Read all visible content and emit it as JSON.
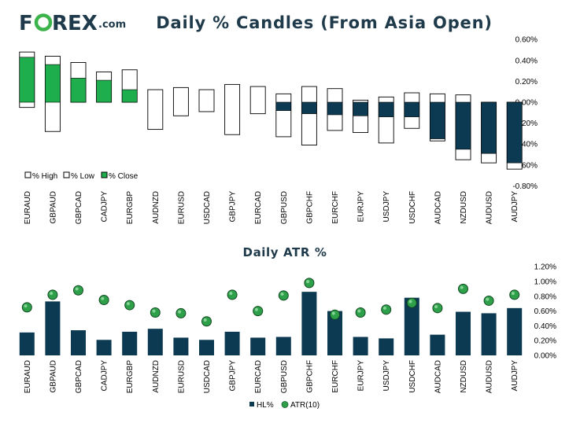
{
  "logo": {
    "f": "F",
    "rest": "REX",
    "domain": ".com",
    "o_color": "#3cb44b"
  },
  "colors": {
    "navy": "#0c3a52",
    "green": "#1fae4e",
    "outline": "#000000",
    "atr_green": "#2ea04a"
  },
  "chart_data": [
    {
      "type": "candlestick",
      "title": "Daily % Candles (From Asia Open)",
      "categories": [
        "EURAUD",
        "GBPAUD",
        "GBPCAD",
        "CADJPY",
        "EURGBP",
        "AUDNZD",
        "EURUSD",
        "USDCAD",
        "GBPJPY",
        "EURCAD",
        "GBPUSD",
        "GBPCHF",
        "EURCHF",
        "EURJPY",
        "USDJPY",
        "USDCHF",
        "AUDCAD",
        "NZDUSD",
        "AUDUSD",
        "AUDJPY"
      ],
      "high": [
        0.48,
        0.44,
        0.38,
        0.29,
        0.31,
        0.12,
        0.14,
        0.12,
        0.17,
        0.15,
        0.08,
        0.15,
        0.13,
        0.02,
        0.05,
        0.09,
        0.08,
        0.07,
        0.0,
        0.0
      ],
      "low": [
        -0.05,
        -0.28,
        0.0,
        0.0,
        0.0,
        -0.26,
        -0.13,
        -0.09,
        -0.31,
        -0.11,
        -0.33,
        -0.41,
        -0.27,
        -0.29,
        -0.39,
        -0.25,
        -0.37,
        -0.55,
        -0.58,
        -0.64
      ],
      "close": [
        0.43,
        0.36,
        0.23,
        0.21,
        0.12,
        0.0,
        0.0,
        0.0,
        0.0,
        0.0,
        -0.08,
        -0.11,
        -0.12,
        -0.13,
        -0.14,
        -0.14,
        -0.35,
        -0.45,
        -0.49,
        -0.58
      ],
      "yticks": [
        "0.60%",
        "0.40%",
        "0.20%",
        "0.00%",
        "-0.20%",
        "-0.40%",
        "-0.60%",
        "-0.80%"
      ],
      "ylim": [
        -0.8,
        0.6
      ],
      "legend": [
        "% High",
        "% Low",
        "% Close"
      ]
    },
    {
      "type": "bar",
      "title": "Daily ATR %",
      "categories": [
        "EURAUD",
        "GBPAUD",
        "GBPCAD",
        "CADJPY",
        "EURGBP",
        "AUDNZD",
        "EURUSD",
        "USDCAD",
        "GBPJPY",
        "EURCAD",
        "GBPUSD",
        "GBPCHF",
        "EURCHF",
        "EURJPY",
        "USDJPY",
        "USDCHF",
        "AUDCAD",
        "NZDUSD",
        "AUDUSD",
        "AUDJPY"
      ],
      "series": [
        {
          "name": "HL%",
          "values": [
            0.31,
            0.73,
            0.34,
            0.21,
            0.32,
            0.36,
            0.24,
            0.21,
            0.32,
            0.24,
            0.25,
            0.86,
            0.6,
            0.25,
            0.23,
            0.78,
            0.28,
            0.59,
            0.57,
            0.64
          ]
        },
        {
          "name": "ATR(10)",
          "values": [
            0.65,
            0.82,
            0.88,
            0.75,
            0.68,
            0.58,
            0.57,
            0.46,
            0.82,
            0.6,
            0.81,
            0.98,
            0.55,
            0.58,
            0.62,
            0.71,
            0.64,
            0.9,
            0.74,
            0.82
          ]
        }
      ],
      "yticks": [
        "1.20%",
        "1.00%",
        "0.80%",
        "0.60%",
        "0.40%",
        "0.20%",
        "0.00%"
      ],
      "ylim": [
        0,
        1.2
      ]
    }
  ]
}
